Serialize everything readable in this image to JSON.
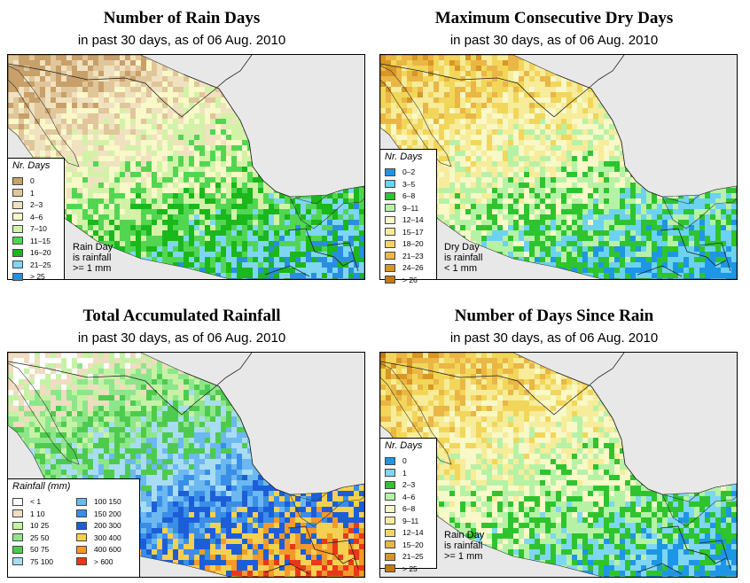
{
  "panels": [
    {
      "title": "Number of Rain Days",
      "subtitle": "in past 30 days, as of  06 Aug. 2010",
      "legend_title": "Nr. Days",
      "legend": [
        {
          "label": "0",
          "color": "#c8a06a"
        },
        {
          "label": "1",
          "color": "#e0c69a"
        },
        {
          "label": "2–3",
          "color": "#f0e2c0"
        },
        {
          "label": "4–6",
          "color": "#f8f8c8"
        },
        {
          "label": "7–10",
          "color": "#d2f2a8"
        },
        {
          "label": "11–15",
          "color": "#52d652"
        },
        {
          "label": "16–20",
          "color": "#1ab81a"
        },
        {
          "label": "21–25",
          "color": "#7fd6f2"
        },
        {
          "label": "> 25",
          "color": "#2a8ee0"
        }
      ],
      "note": "Rain Day\nis rainfall\n>= 1 mm"
    },
    {
      "title": "Maximum Consecutive Dry Days",
      "subtitle": "in past 30 days, as of  06 Aug. 2010",
      "legend_title": "Nr. Days",
      "legend": [
        {
          "label": "0–2",
          "color": "#1e96e6"
        },
        {
          "label": "3–5",
          "color": "#6cd2f0"
        },
        {
          "label": "6–8",
          "color": "#2ec42e"
        },
        {
          "label": "9–11",
          "color": "#b6f2a6"
        },
        {
          "label": "12–14",
          "color": "#f8f8c8"
        },
        {
          "label": "15–17",
          "color": "#f6ec9a"
        },
        {
          "label": "18–20",
          "color": "#f2d65a"
        },
        {
          "label": "21–23",
          "color": "#eab646"
        },
        {
          "label": "24–26",
          "color": "#d89622"
        },
        {
          "label": "> 26",
          "color": "#c07a10"
        }
      ],
      "note": "Dry Day\nis rainfall\n< 1 mm"
    },
    {
      "title": "Total Accumulated Rainfall",
      "subtitle": "in past 30 days, as of  06 Aug. 2010",
      "legend_title": "Rainfall (mm)",
      "legend": [
        {
          "label": "< 1",
          "color": "#ffffff"
        },
        {
          "label": "1   10",
          "color": "#f0dcc0"
        },
        {
          "label": "10   25",
          "color": "#c6f2a6"
        },
        {
          "label": "25   50",
          "color": "#8ee68a"
        },
        {
          "label": "50   75",
          "color": "#4ecb4e"
        },
        {
          "label": "75   100",
          "color": "#a8dcf2"
        },
        {
          "label": "100   150",
          "color": "#6cb8f0"
        },
        {
          "label": "150   200",
          "color": "#3a8ee8"
        },
        {
          "label": "200   300",
          "color": "#1c5ed8"
        },
        {
          "label": "300   400",
          "color": "#f6d050"
        },
        {
          "label": "400   600",
          "color": "#f29a2a"
        },
        {
          "label": "> 600",
          "color": "#e8381a"
        }
      ],
      "note": ""
    },
    {
      "title": "Number of Days Since Rain",
      "subtitle": "in past 30 days, as of  06 Aug. 2010",
      "legend_title": "Nr. Days",
      "legend": [
        {
          "label": "0",
          "color": "#1e96e6"
        },
        {
          "label": "1",
          "color": "#7fd6f2"
        },
        {
          "label": "2–3",
          "color": "#2ec42e"
        },
        {
          "label": "4–6",
          "color": "#b6f2a6"
        },
        {
          "label": "6–8",
          "color": "#f8f8c8"
        },
        {
          "label": "9–11",
          "color": "#f6ec9a"
        },
        {
          "label": "12–14",
          "color": "#f2d65a"
        },
        {
          "label": "15–20",
          "color": "#eab646"
        },
        {
          "label": "21–25",
          "color": "#d89622"
        },
        {
          "label": "> 25",
          "color": "#c07a10"
        }
      ],
      "note": "Rain Day\nis rainfall\n>= 1 mm"
    }
  ]
}
